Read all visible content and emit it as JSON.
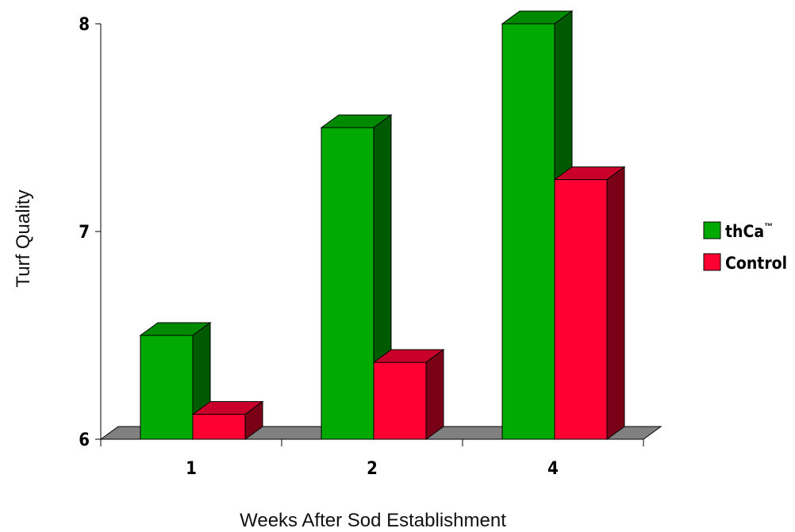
{
  "chart_data": {
    "type": "bar",
    "categories": [
      "1",
      "2",
      "4"
    ],
    "series": [
      {
        "name": "thCa",
        "name_suffix": "™",
        "color": "#00AA00",
        "side_color": "#005A00",
        "top_color": "#008A00",
        "values": [
          6.5,
          7.5,
          8.0
        ]
      },
      {
        "name": "Control",
        "name_suffix": "",
        "color": "#FF0033",
        "side_color": "#7A0018",
        "top_color": "#C8002A",
        "values": [
          6.12,
          6.37,
          7.25
        ]
      }
    ],
    "xlabel": "Weeks After Sod Establishment",
    "ylabel": "Turf Quality",
    "ylim": [
      6,
      8
    ],
    "yticks": [
      "6",
      "7",
      "8"
    ],
    "floor_color": "#808080",
    "legend_position": "right",
    "grid": false
  }
}
